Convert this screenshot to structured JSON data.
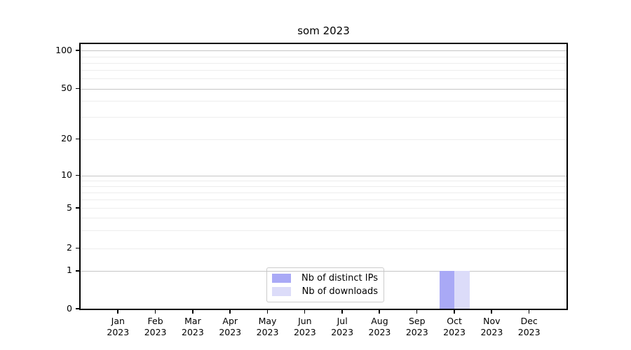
{
  "chart_data": {
    "type": "bar",
    "title": "som 2023",
    "xlabel": "",
    "ylabel": "",
    "categories": [
      {
        "month": "Jan",
        "year": "2023"
      },
      {
        "month": "Feb",
        "year": "2023"
      },
      {
        "month": "Mar",
        "year": "2023"
      },
      {
        "month": "Apr",
        "year": "2023"
      },
      {
        "month": "May",
        "year": "2023"
      },
      {
        "month": "Jun",
        "year": "2023"
      },
      {
        "month": "Jul",
        "year": "2023"
      },
      {
        "month": "Aug",
        "year": "2023"
      },
      {
        "month": "Sep",
        "year": "2023"
      },
      {
        "month": "Oct",
        "year": "2023"
      },
      {
        "month": "Nov",
        "year": "2023"
      },
      {
        "month": "Dec",
        "year": "2023"
      }
    ],
    "series": [
      {
        "name": "Nb of distinct IPs",
        "color": "#a9a9f6",
        "values": [
          0,
          0,
          0,
          0,
          0,
          0,
          0,
          0,
          0,
          1,
          0,
          0
        ]
      },
      {
        "name": "Nb of downloads",
        "color": "#dcdcf9",
        "values": [
          0,
          0,
          0,
          0,
          0,
          0,
          0,
          0,
          0,
          1,
          0,
          0
        ]
      }
    ],
    "y_axis": {
      "scale": "log-like",
      "ticks": [
        {
          "value": 0,
          "frac": 1.0,
          "major": false
        },
        {
          "value": 1,
          "frac": 0.857,
          "major": true
        },
        {
          "value": 2,
          "frac": 0.772,
          "major": false
        },
        {
          "value": 5,
          "frac": 0.62,
          "major": false
        },
        {
          "value": 10,
          "frac": 0.497,
          "major": true
        },
        {
          "value": 20,
          "frac": 0.359,
          "major": false
        },
        {
          "value": 50,
          "frac": 0.168,
          "major": true
        },
        {
          "value": 100,
          "frac": 0.025,
          "major": true
        }
      ],
      "minor_fracs": [
        0.705,
        0.657,
        0.588,
        0.56,
        0.537,
        0.516,
        0.274,
        0.215,
        0.13,
        0.099,
        0.071,
        0.047
      ]
    },
    "grid": true,
    "legend": {
      "position": "lower center"
    }
  },
  "colors": {
    "background": "#ffffff",
    "spine": "#000000",
    "grid_major": "#c6c6c6",
    "grid_minor": "#ededed",
    "legend_border": "#cccccc"
  }
}
